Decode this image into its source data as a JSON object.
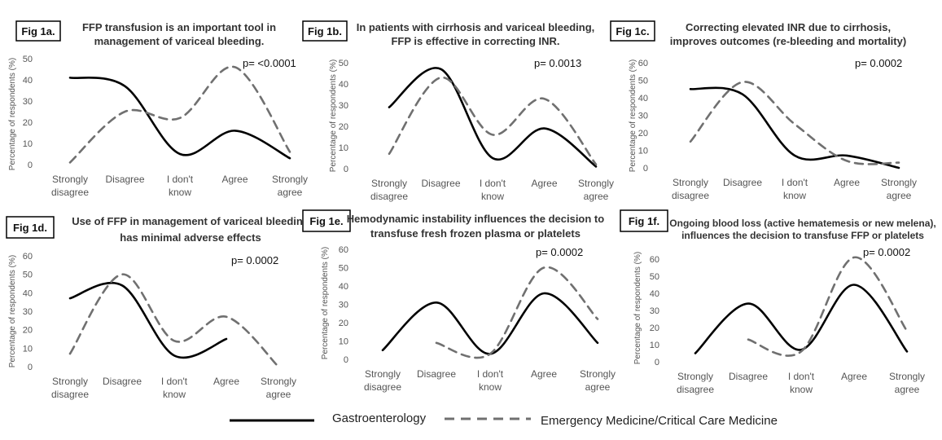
{
  "chart_data": [
    {
      "type": "line",
      "fig_label": "Fig 1a.",
      "title_lines": [
        "FFP transfusion is an important tool in",
        "management of variceal bleeding."
      ],
      "p_value": "p= <0.0001",
      "ylabel": "Percentage of respondents (%)",
      "yticks": [
        0,
        10,
        20,
        30,
        40,
        50
      ],
      "ylim": [
        0,
        50
      ],
      "categories": [
        "Strongly disagree",
        "Disagree",
        "I don't know",
        "Agree",
        "Strongly agree"
      ],
      "series": [
        {
          "name": "Gastroenterology",
          "values": [
            41,
            37,
            5,
            16,
            3
          ]
        },
        {
          "name": "Emergency Medicine/Critical Care Medicine",
          "values": [
            1,
            25,
            22,
            46,
            6
          ]
        }
      ]
    },
    {
      "type": "line",
      "fig_label": "Fig 1b.",
      "title_lines": [
        "In patients with cirrhosis and variceal bleeding,",
        "FFP is effective in correcting INR."
      ],
      "p_value": "p= 0.0013",
      "ylabel": "Percentage of respondents (%)",
      "yticks": [
        0,
        10,
        20,
        30,
        40,
        50
      ],
      "ylim": [
        0,
        50
      ],
      "categories": [
        "Strongly disagree",
        "Disagree",
        "I don't know",
        "Agree",
        "Strongly agree"
      ],
      "series": [
        {
          "name": "Gastroenterology",
          "values": [
            29,
            47,
            5,
            19,
            1
          ]
        },
        {
          "name": "Emergency Medicine/Critical Care Medicine",
          "values": [
            7,
            43,
            16,
            33,
            2
          ]
        }
      ]
    },
    {
      "type": "line",
      "fig_label": "Fig 1c.",
      "title_lines": [
        "Correcting elevated INR due to cirrhosis,",
        "improves outcomes (re-bleeding and mortality)"
      ],
      "p_value": "p= 0.0002",
      "ylabel": "Percentage of respondents (%)",
      "yticks": [
        0,
        10,
        20,
        30,
        40,
        50,
        60
      ],
      "ylim": [
        0,
        60
      ],
      "categories": [
        "Strongly disagree",
        "Disagree",
        "I don't know",
        "Agree",
        "Strongly agree"
      ],
      "series": [
        {
          "name": "Gastroenterology",
          "values": [
            45,
            42,
            7,
            7,
            0
          ]
        },
        {
          "name": "Emergency Medicine/Critical Care Medicine",
          "values": [
            15,
            49,
            25,
            4,
            3
          ]
        }
      ]
    },
    {
      "type": "line",
      "fig_label": "Fig 1d.",
      "title_lines": [
        "Use of FFP in management of variceal bleeding",
        "has minimal adverse effects"
      ],
      "p_value": "p= 0.0002",
      "ylabel": "Percentage of respondents (%)",
      "yticks": [
        0,
        10,
        20,
        30,
        40,
        50,
        60
      ],
      "ylim": [
        0,
        60
      ],
      "categories": [
        "Strongly disagree",
        "Disagree",
        "I don't know",
        "Agree",
        "Strongly agree"
      ],
      "series": [
        {
          "name": "Gastroenterology",
          "values": [
            37,
            44,
            6,
            15,
            null
          ]
        },
        {
          "name": "Emergency Medicine/Critical Care Medicine",
          "values": [
            7,
            50,
            14,
            27,
            0
          ]
        }
      ]
    },
    {
      "type": "line",
      "fig_label": "Fig 1e.",
      "title_lines": [
        "Hemodynamic instability influences the decision to",
        "transfuse fresh frozen plasma or platelets"
      ],
      "p_value": "p= 0.0002",
      "ylabel": "Percentage of respondents (%)",
      "yticks": [
        0,
        10,
        20,
        30,
        40,
        50,
        60
      ],
      "ylim": [
        0,
        60
      ],
      "categories": [
        "Strongly disagree",
        "Disagree",
        "I don't know",
        "Agree",
        "Strongly agree"
      ],
      "series": [
        {
          "name": "Gastroenterology",
          "values": [
            5,
            31,
            3,
            36,
            9
          ]
        },
        {
          "name": "Emergency Medicine/Critical Care Medicine",
          "values": [
            null,
            9,
            3,
            50,
            22
          ]
        }
      ]
    },
    {
      "type": "line",
      "fig_label": "Fig 1f.",
      "title_lines": [
        "Ongoing blood loss (active hematemesis or new melena),",
        "influences the decision to transfuse FFP or platelets"
      ],
      "p_value": "p= 0.0002",
      "ylabel": "Percentage of respondents (%)",
      "yticks": [
        0,
        10,
        20,
        30,
        40,
        50,
        60
      ],
      "ylim": [
        0,
        60
      ],
      "categories": [
        "Strongly disagree",
        "Disagree",
        "I don't know",
        "Agree",
        "Strongly agree"
      ],
      "series": [
        {
          "name": "Gastroenterology",
          "values": [
            5,
            34,
            7,
            45,
            6
          ]
        },
        {
          "name": "Emergency Medicine/Critical Care Medicine",
          "values": [
            null,
            13,
            6,
            61,
            18
          ]
        }
      ]
    }
  ],
  "legend": {
    "items": [
      {
        "label": "Gastroenterology",
        "color": "#000000",
        "style": "solid"
      },
      {
        "label": "Emergency Medicine/Critical Care Medicine",
        "color": "#707070",
        "style": "dashed"
      }
    ]
  }
}
